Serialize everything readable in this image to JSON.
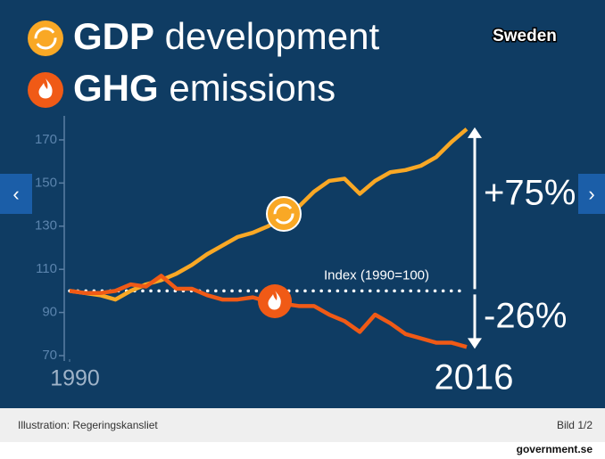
{
  "chart_data": {
    "type": "line",
    "legend_title": [
      "GDP development",
      "GHG emissions"
    ],
    "country": "Sweden",
    "x": [
      1990,
      1991,
      1992,
      1993,
      1994,
      1995,
      1996,
      1997,
      1998,
      1999,
      2000,
      2001,
      2002,
      2003,
      2004,
      2005,
      2006,
      2007,
      2008,
      2009,
      2010,
      2011,
      2012,
      2013,
      2014,
      2015,
      2016
    ],
    "series": [
      {
        "name": "GDP development",
        "color": "#f9a825",
        "values": [
          100,
          99,
          98,
          96,
          100,
          103,
          105,
          108,
          112,
          117,
          121,
          125,
          127,
          130,
          134,
          139,
          146,
          151,
          152,
          145,
          151,
          155,
          156,
          158,
          162,
          169,
          175
        ]
      },
      {
        "name": "GHG emissions",
        "color": "#f05a16",
        "values": [
          100,
          99,
          99,
          100,
          103,
          102,
          107,
          101,
          101,
          98,
          96,
          96,
          97,
          95,
          94,
          93,
          93,
          89,
          86,
          81,
          89,
          85,
          80,
          78,
          76,
          76,
          74
        ]
      }
    ],
    "reference_line": {
      "value": 100,
      "label": "Index (1990=100)"
    },
    "annotations": [
      "+75%",
      "-26%"
    ],
    "xlim": [
      1990,
      2016
    ],
    "xticks": [
      1990,
      2016
    ],
    "ylim": [
      70,
      177
    ],
    "yticks": [
      70,
      90,
      110,
      130,
      150,
      170
    ]
  },
  "caption": {
    "credit": "Illustration: Regeringskansliet",
    "counter": "Bild 1/2"
  },
  "site": "government.se"
}
